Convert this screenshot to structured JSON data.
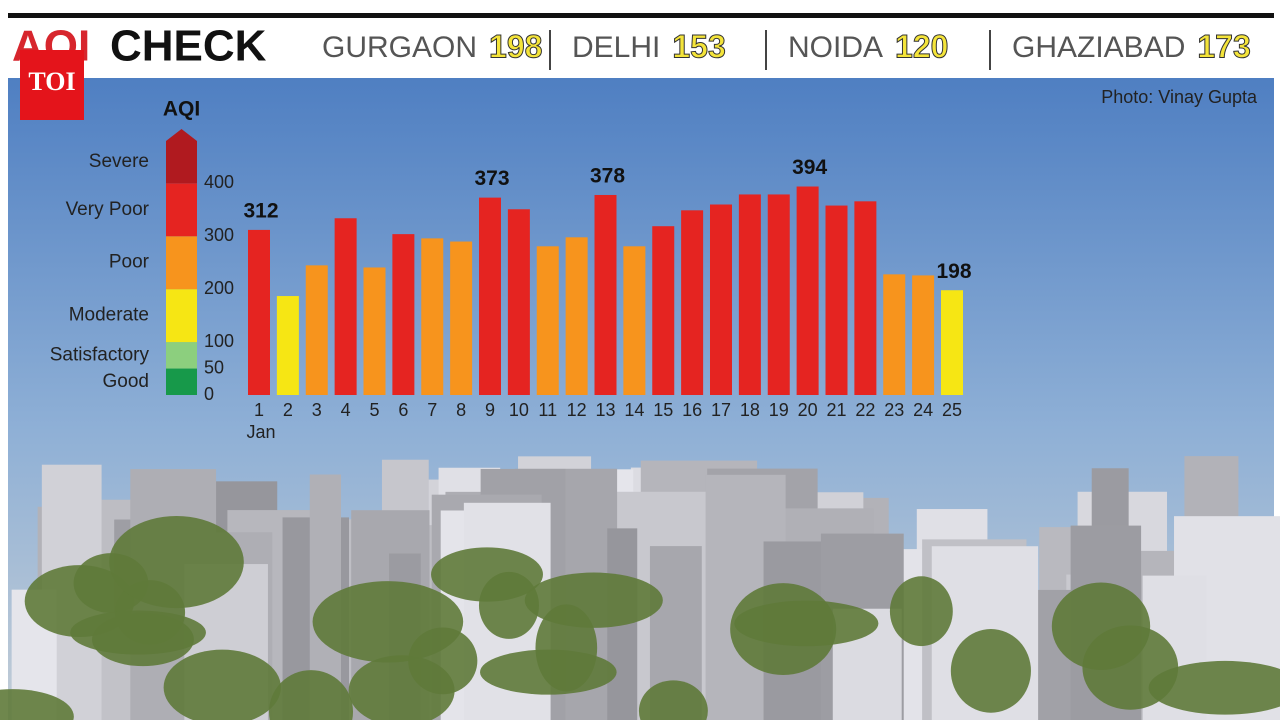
{
  "header": {
    "title_accent": "AQI",
    "title": "CHECK",
    "cities": [
      {
        "name": "GURGAON",
        "aqi": 198
      },
      {
        "name": "DELHI",
        "aqi": 153
      },
      {
        "name": "NOIDA",
        "aqi": 120
      },
      {
        "name": "GHAZIABAD",
        "aqi": 173
      }
    ]
  },
  "logo": "TOI",
  "credit": "Photo: Vinay Gupta",
  "chart_data": {
    "type": "bar",
    "y_label": "AQI",
    "categories": [
      "1",
      "2",
      "3",
      "4",
      "5",
      "6",
      "7",
      "8",
      "9",
      "10",
      "11",
      "12",
      "13",
      "14",
      "15",
      "16",
      "17",
      "18",
      "19",
      "20",
      "21",
      "22",
      "23",
      "24",
      "25"
    ],
    "x_sublabel": "Jan",
    "values": [
      312,
      187,
      245,
      334,
      241,
      304,
      296,
      290,
      373,
      351,
      281,
      298,
      378,
      281,
      319,
      349,
      360,
      379,
      379,
      394,
      358,
      366,
      228,
      226,
      198
    ],
    "value_labels": [
      "312",
      null,
      null,
      null,
      null,
      null,
      null,
      null,
      "373",
      null,
      null,
      null,
      "378",
      null,
      null,
      null,
      null,
      null,
      null,
      "394",
      null,
      null,
      null,
      null,
      "198"
    ],
    "ylim": [
      0,
      480
    ],
    "yticks": [
      0,
      50,
      100,
      200,
      300,
      400
    ],
    "bands": [
      {
        "name": "Good",
        "from": 0,
        "color": "#17994a"
      },
      {
        "name": "Satisfactory",
        "from": 50,
        "color": "#8ccf7e"
      },
      {
        "name": "Moderate",
        "from": 100,
        "color": "#f6e614"
      },
      {
        "name": "Poor",
        "from": 200,
        "color": "#f7941d"
      },
      {
        "name": "Very Poor",
        "from": 300,
        "color": "#e52421"
      },
      {
        "name": "Severe",
        "from": 400,
        "color": "#b01a1f"
      }
    ]
  }
}
